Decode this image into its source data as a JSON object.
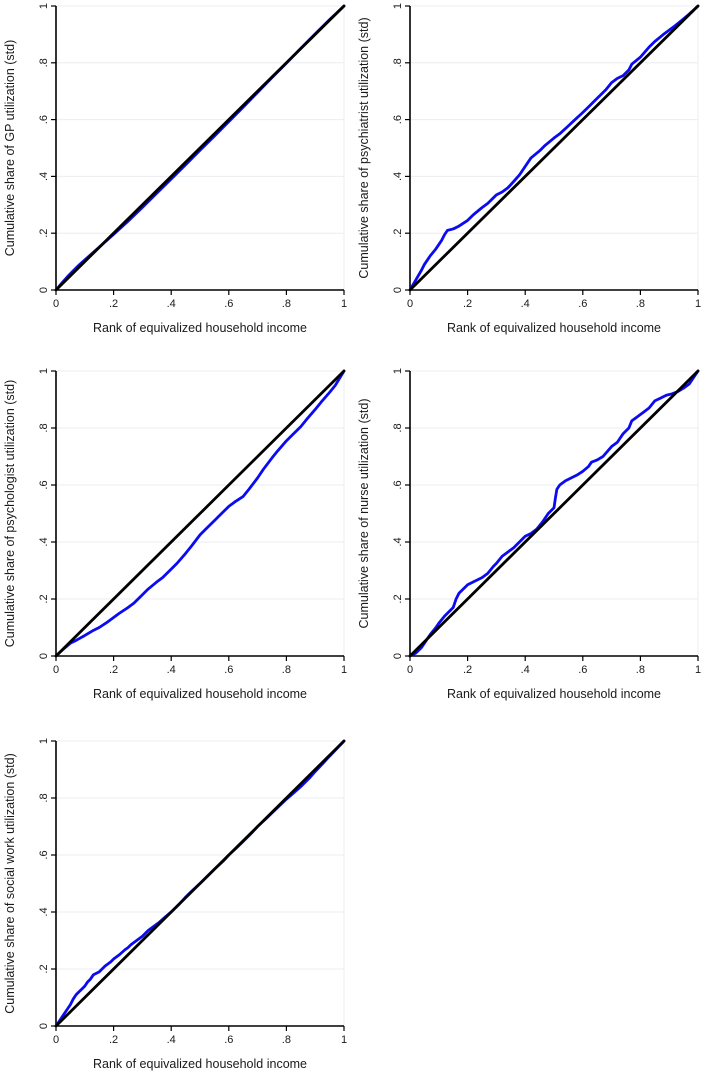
{
  "palette": {
    "curve_blue": "#0b0bf0",
    "equality_black": "#000000",
    "grid_gray": "#eaeef1",
    "text": "#1a1a1a"
  },
  "shared": {
    "xlabel": "Rank of equivalized household income",
    "x_tick_values": [
      0,
      0.2,
      0.4,
      0.6,
      0.8,
      1
    ],
    "x_tick_labels": [
      "0",
      ".2",
      ".4",
      ".6",
      ".8",
      "1"
    ],
    "y_tick_values": [
      0,
      0.2,
      0.4,
      0.6,
      0.8,
      1
    ],
    "y_tick_labels": [
      "0",
      ".2",
      ".4",
      ".6",
      ".8",
      "1"
    ]
  },
  "chart_data": [
    {
      "type": "line",
      "title": "",
      "xlabel": "Rank of equivalized household income",
      "ylabel": "Cumulative share of GP utilization (std)",
      "xlim": [
        0,
        1
      ],
      "ylim": [
        0,
        1
      ],
      "grid": "horizontal",
      "legend": "none",
      "series": [
        {
          "name": "concentration curve",
          "color": "#0b0bf0",
          "points": [
            [
              0,
              0
            ],
            [
              0.02,
              0.024
            ],
            [
              0.04,
              0.047
            ],
            [
              0.06,
              0.068
            ],
            [
              0.08,
              0.088
            ],
            [
              0.1,
              0.106
            ],
            [
              0.12,
              0.124
            ],
            [
              0.15,
              0.151
            ],
            [
              0.18,
              0.178
            ],
            [
              0.2,
              0.196
            ],
            [
              0.25,
              0.242
            ],
            [
              0.3,
              0.291
            ],
            [
              0.35,
              0.341
            ],
            [
              0.4,
              0.391
            ],
            [
              0.45,
              0.441
            ],
            [
              0.5,
              0.492
            ],
            [
              0.55,
              0.542
            ],
            [
              0.6,
              0.593
            ],
            [
              0.65,
              0.644
            ],
            [
              0.7,
              0.696
            ],
            [
              0.75,
              0.748
            ],
            [
              0.8,
              0.799
            ],
            [
              0.85,
              0.851
            ],
            [
              0.9,
              0.902
            ],
            [
              0.95,
              0.952
            ],
            [
              1,
              1
            ]
          ]
        },
        {
          "name": "line of equality",
          "color": "#000000",
          "points": [
            [
              0,
              0
            ],
            [
              1,
              1
            ]
          ]
        }
      ]
    },
    {
      "type": "line",
      "title": "",
      "xlabel": "Rank of equivalized household income",
      "ylabel": "Cumulative share of psychiatrist utilization (std)",
      "xlim": [
        0,
        1
      ],
      "ylim": [
        0,
        1
      ],
      "grid": "horizontal",
      "legend": "none",
      "series": [
        {
          "name": "concentration curve",
          "color": "#0b0bf0",
          "points": [
            [
              0,
              0
            ],
            [
              0.02,
              0.035
            ],
            [
              0.04,
              0.07
            ],
            [
              0.05,
              0.09
            ],
            [
              0.07,
              0.12
            ],
            [
              0.09,
              0.145
            ],
            [
              0.1,
              0.16
            ],
            [
              0.11,
              0.175
            ],
            [
              0.12,
              0.195
            ],
            [
              0.13,
              0.21
            ],
            [
              0.15,
              0.215
            ],
            [
              0.17,
              0.225
            ],
            [
              0.2,
              0.245
            ],
            [
              0.22,
              0.265
            ],
            [
              0.25,
              0.29
            ],
            [
              0.27,
              0.305
            ],
            [
              0.3,
              0.335
            ],
            [
              0.32,
              0.345
            ],
            [
              0.34,
              0.36
            ],
            [
              0.36,
              0.382
            ],
            [
              0.38,
              0.405
            ],
            [
              0.4,
              0.435
            ],
            [
              0.42,
              0.465
            ],
            [
              0.45,
              0.49
            ],
            [
              0.47,
              0.51
            ],
            [
              0.5,
              0.535
            ],
            [
              0.52,
              0.55
            ],
            [
              0.55,
              0.578
            ],
            [
              0.57,
              0.597
            ],
            [
              0.6,
              0.625
            ],
            [
              0.62,
              0.645
            ],
            [
              0.65,
              0.675
            ],
            [
              0.68,
              0.705
            ],
            [
              0.7,
              0.73
            ],
            [
              0.72,
              0.745
            ],
            [
              0.74,
              0.755
            ],
            [
              0.76,
              0.775
            ],
            [
              0.77,
              0.795
            ],
            [
              0.8,
              0.82
            ],
            [
              0.83,
              0.855
            ],
            [
              0.85,
              0.875
            ],
            [
              0.88,
              0.9
            ],
            [
              0.9,
              0.915
            ],
            [
              0.92,
              0.93
            ],
            [
              0.95,
              0.955
            ],
            [
              0.97,
              0.972
            ],
            [
              1,
              1
            ]
          ]
        },
        {
          "name": "line of equality",
          "color": "#000000",
          "points": [
            [
              0,
              0
            ],
            [
              1,
              1
            ]
          ]
        }
      ]
    },
    {
      "type": "line",
      "title": "",
      "xlabel": "Rank of equivalized household income",
      "ylabel": "Cumulative share of psychologist utilization (std)",
      "xlim": [
        0,
        1
      ],
      "ylim": [
        0,
        1
      ],
      "grid": "horizontal",
      "legend": "none",
      "series": [
        {
          "name": "concentration curve",
          "color": "#0b0bf0",
          "points": [
            [
              0,
              0
            ],
            [
              0.03,
              0.028
            ],
            [
              0.05,
              0.045
            ],
            [
              0.07,
              0.055
            ],
            [
              0.1,
              0.072
            ],
            [
              0.13,
              0.09
            ],
            [
              0.15,
              0.1
            ],
            [
              0.18,
              0.12
            ],
            [
              0.2,
              0.135
            ],
            [
              0.22,
              0.15
            ],
            [
              0.25,
              0.17
            ],
            [
              0.27,
              0.185
            ],
            [
              0.3,
              0.215
            ],
            [
              0.32,
              0.235
            ],
            [
              0.35,
              0.26
            ],
            [
              0.37,
              0.275
            ],
            [
              0.4,
              0.305
            ],
            [
              0.42,
              0.325
            ],
            [
              0.45,
              0.36
            ],
            [
              0.47,
              0.385
            ],
            [
              0.5,
              0.425
            ],
            [
              0.52,
              0.445
            ],
            [
              0.55,
              0.475
            ],
            [
              0.57,
              0.495
            ],
            [
              0.6,
              0.525
            ],
            [
              0.62,
              0.54
            ],
            [
              0.65,
              0.56
            ],
            [
              0.67,
              0.585
            ],
            [
              0.7,
              0.625
            ],
            [
              0.72,
              0.655
            ],
            [
              0.75,
              0.695
            ],
            [
              0.77,
              0.72
            ],
            [
              0.8,
              0.755
            ],
            [
              0.82,
              0.775
            ],
            [
              0.85,
              0.805
            ],
            [
              0.87,
              0.83
            ],
            [
              0.9,
              0.865
            ],
            [
              0.92,
              0.89
            ],
            [
              0.95,
              0.925
            ],
            [
              0.97,
              0.95
            ],
            [
              1,
              1
            ]
          ]
        },
        {
          "name": "line of equality",
          "color": "#000000",
          "points": [
            [
              0,
              0
            ],
            [
              1,
              1
            ]
          ]
        }
      ]
    },
    {
      "type": "line",
      "title": "",
      "xlabel": "Rank of equivalized household income",
      "ylabel": "Cumulative share of nurse utilization (std)",
      "xlim": [
        0,
        1
      ],
      "ylim": [
        0,
        1
      ],
      "grid": "horizontal",
      "legend": "none",
      "series": [
        {
          "name": "concentration curve",
          "color": "#0b0bf0",
          "points": [
            [
              0,
              0
            ],
            [
              0.02,
              0.01
            ],
            [
              0.04,
              0.03
            ],
            [
              0.05,
              0.045
            ],
            [
              0.07,
              0.075
            ],
            [
              0.09,
              0.1
            ],
            [
              0.1,
              0.115
            ],
            [
              0.12,
              0.14
            ],
            [
              0.14,
              0.16
            ],
            [
              0.15,
              0.17
            ],
            [
              0.16,
              0.2
            ],
            [
              0.17,
              0.22
            ],
            [
              0.19,
              0.24
            ],
            [
              0.2,
              0.25
            ],
            [
              0.22,
              0.26
            ],
            [
              0.25,
              0.275
            ],
            [
              0.27,
              0.29
            ],
            [
              0.29,
              0.315
            ],
            [
              0.3,
              0.325
            ],
            [
              0.32,
              0.35
            ],
            [
              0.34,
              0.365
            ],
            [
              0.36,
              0.38
            ],
            [
              0.38,
              0.4
            ],
            [
              0.4,
              0.42
            ],
            [
              0.42,
              0.43
            ],
            [
              0.44,
              0.445
            ],
            [
              0.46,
              0.47
            ],
            [
              0.48,
              0.5
            ],
            [
              0.5,
              0.52
            ],
            [
              0.505,
              0.555
            ],
            [
              0.51,
              0.585
            ],
            [
              0.52,
              0.6
            ],
            [
              0.54,
              0.615
            ],
            [
              0.56,
              0.625
            ],
            [
              0.58,
              0.635
            ],
            [
              0.6,
              0.648
            ],
            [
              0.62,
              0.665
            ],
            [
              0.63,
              0.68
            ],
            [
              0.65,
              0.688
            ],
            [
              0.67,
              0.7
            ],
            [
              0.7,
              0.735
            ],
            [
              0.72,
              0.75
            ],
            [
              0.74,
              0.78
            ],
            [
              0.76,
              0.8
            ],
            [
              0.77,
              0.825
            ],
            [
              0.79,
              0.84
            ],
            [
              0.81,
              0.855
            ],
            [
              0.83,
              0.87
            ],
            [
              0.85,
              0.895
            ],
            [
              0.87,
              0.905
            ],
            [
              0.89,
              0.915
            ],
            [
              0.91,
              0.92
            ],
            [
              0.93,
              0.928
            ],
            [
              0.95,
              0.94
            ],
            [
              0.97,
              0.955
            ],
            [
              1,
              1
            ]
          ]
        },
        {
          "name": "line of equality",
          "color": "#000000",
          "points": [
            [
              0,
              0
            ],
            [
              1,
              1
            ]
          ]
        }
      ]
    },
    {
      "type": "line",
      "title": "",
      "xlabel": "Rank of equivalized household income",
      "ylabel": "Cumulative share of social work utilization (std)",
      "xlim": [
        0,
        1
      ],
      "ylim": [
        0,
        1
      ],
      "grid": "horizontal",
      "legend": "none",
      "series": [
        {
          "name": "concentration curve",
          "color": "#0b0bf0",
          "points": [
            [
              0,
              0
            ],
            [
              0.01,
              0.015
            ],
            [
              0.02,
              0.03
            ],
            [
              0.03,
              0.045
            ],
            [
              0.04,
              0.06
            ],
            [
              0.05,
              0.075
            ],
            [
              0.06,
              0.095
            ],
            [
              0.07,
              0.11
            ],
            [
              0.08,
              0.12
            ],
            [
              0.09,
              0.13
            ],
            [
              0.1,
              0.14
            ],
            [
              0.11,
              0.155
            ],
            [
              0.12,
              0.165
            ],
            [
              0.13,
              0.18
            ],
            [
              0.15,
              0.19
            ],
            [
              0.17,
              0.21
            ],
            [
              0.19,
              0.225
            ],
            [
              0.2,
              0.235
            ],
            [
              0.22,
              0.25
            ],
            [
              0.24,
              0.268
            ],
            [
              0.25,
              0.275
            ],
            [
              0.26,
              0.285
            ],
            [
              0.28,
              0.3
            ],
            [
              0.3,
              0.315
            ],
            [
              0.32,
              0.335
            ],
            [
              0.34,
              0.35
            ],
            [
              0.36,
              0.365
            ],
            [
              0.38,
              0.383
            ],
            [
              0.4,
              0.4
            ],
            [
              0.43,
              0.43
            ],
            [
              0.45,
              0.452
            ],
            [
              0.47,
              0.472
            ],
            [
              0.5,
              0.5
            ],
            [
              0.53,
              0.53
            ],
            [
              0.55,
              0.55
            ],
            [
              0.58,
              0.578
            ],
            [
              0.6,
              0.6
            ],
            [
              0.63,
              0.628
            ],
            [
              0.65,
              0.648
            ],
            [
              0.68,
              0.678
            ],
            [
              0.7,
              0.7
            ],
            [
              0.73,
              0.728
            ],
            [
              0.75,
              0.748
            ],
            [
              0.78,
              0.777
            ],
            [
              0.8,
              0.796
            ],
            [
              0.83,
              0.822
            ],
            [
              0.85,
              0.84
            ],
            [
              0.88,
              0.87
            ],
            [
              0.9,
              0.893
            ],
            [
              0.93,
              0.925
            ],
            [
              0.95,
              0.947
            ],
            [
              0.97,
              0.968
            ],
            [
              1,
              1
            ]
          ]
        },
        {
          "name": "line of equality",
          "color": "#000000",
          "points": [
            [
              0,
              0
            ],
            [
              1,
              1
            ]
          ]
        }
      ]
    }
  ]
}
